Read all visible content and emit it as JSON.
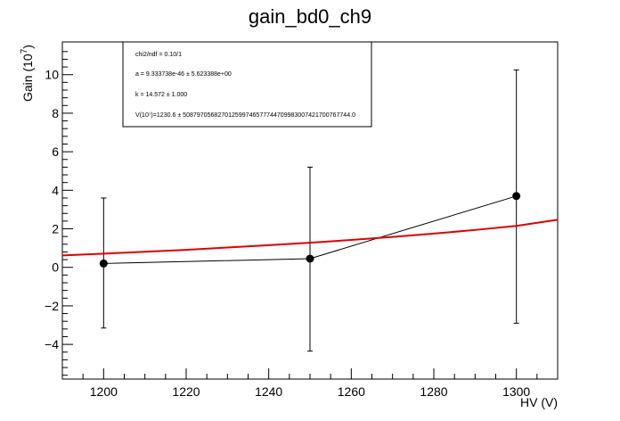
{
  "chart_data": {
    "type": "scatter",
    "title": "gain_bd0_ch9",
    "xlabel": "HV (V)",
    "ylabel": "Gain (10^7)",
    "ylabel_base": "Gain (10",
    "ylabel_exp": "7",
    "ylabel_end": ")",
    "xlim": [
      1190,
      1310
    ],
    "ylim": [
      -5.8,
      11.7
    ],
    "xticks": [
      1200,
      1220,
      1240,
      1260,
      1280,
      1300
    ],
    "yticks": [
      -4,
      -2,
      0,
      2,
      4,
      6,
      8,
      10
    ],
    "ytick_labels": [
      "−4",
      "−2",
      "0",
      "2",
      "4",
      "6",
      "8",
      "10"
    ],
    "points": [
      {
        "x": 1200,
        "y": 0.2,
        "yerr_low": 3.35,
        "yerr_high": 3.4
      },
      {
        "x": 1250,
        "y": 0.45,
        "yerr_low": 4.8,
        "yerr_high": 4.75
      },
      {
        "x": 1300,
        "y": 3.7,
        "yerr_low": 6.6,
        "yerr_high": 6.55
      }
    ],
    "fit": {
      "color": "#e00000",
      "x": [
        1190,
        1200,
        1210,
        1220,
        1230,
        1240,
        1250,
        1260,
        1270,
        1280,
        1290,
        1300,
        1310
      ],
      "y": [
        0.62,
        0.71,
        0.81,
        0.91,
        1.03,
        1.15,
        1.28,
        1.42,
        1.58,
        1.75,
        1.94,
        2.15,
        2.47
      ]
    },
    "stats_box": {
      "lines": [
        "chi2/ndf = 0.10/1",
        "a = 9.333738e-46 ± 5.623388e+00",
        "k = 14.572 ± 1.000",
        "V(10⁷)=1230.6 ± 5087970568270125997465777447099830074217007677​44.0"
      ]
    }
  }
}
